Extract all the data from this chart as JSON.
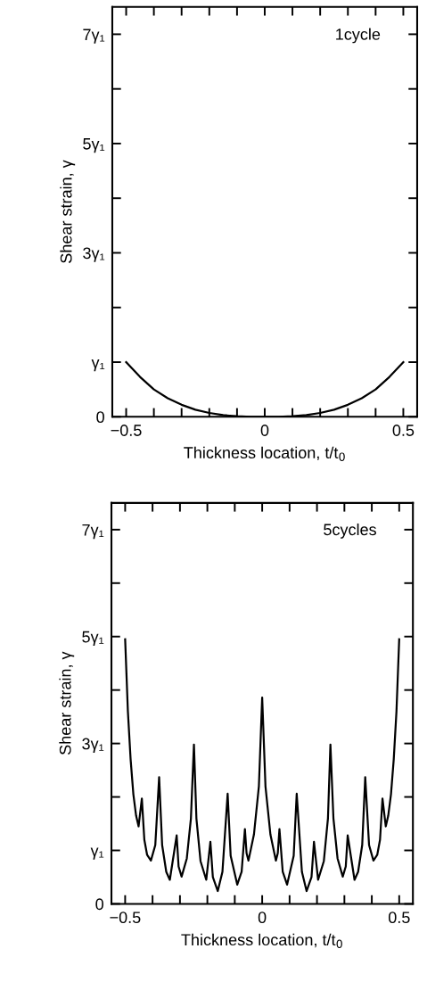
{
  "chart_data": [
    {
      "type": "line",
      "xlabel": "Thickness location, t/t$_{0}$",
      "ylabel": "Shear strain, γ",
      "annotations": [
        "1cycle"
      ],
      "x": [
        -0.5,
        -0.45,
        -0.4,
        -0.35,
        -0.3,
        -0.25,
        -0.2,
        -0.15,
        -0.1,
        -0.05,
        0,
        0.05,
        0.1,
        0.15,
        0.2,
        0.25,
        0.3,
        0.35,
        0.4,
        0.45,
        0.5
      ],
      "series": [
        {
          "color": "#000000",
          "values": [
            1,
            0.73,
            0.5,
            0.34,
            0.22,
            0.13,
            0.07,
            0.03,
            0.01,
            0,
            0,
            0,
            0.01,
            0.03,
            0.07,
            0.13,
            0.22,
            0.34,
            0.5,
            0.73,
            1
          ]
        }
      ],
      "xlim": [
        -0.55,
        0.55
      ],
      "ylim": [
        0,
        7.5
      ],
      "xticks": [
        {
          "value": -0.5,
          "label": "−0.5"
        },
        {
          "value": -0.4,
          "label": null
        },
        {
          "value": -0.3,
          "label": null
        },
        {
          "value": -0.2,
          "label": null
        },
        {
          "value": -0.1,
          "label": null
        },
        0,
        {
          "value": 0.1,
          "label": null
        },
        {
          "value": 0.2,
          "label": null
        },
        {
          "value": 0.3,
          "label": null
        },
        {
          "value": 0.4,
          "label": null
        },
        0.5
      ],
      "yticks": [
        0,
        {
          "value": 1,
          "label": "γ₁"
        },
        {
          "value": 2,
          "label": null
        },
        {
          "value": 3,
          "label": "3γ₁"
        },
        {
          "value": 4,
          "label": null
        },
        {
          "value": 5,
          "label": "5γ₁"
        },
        {
          "value": 6,
          "label": null
        },
        {
          "value": 7,
          "label": "7γ₁"
        }
      ],
      "grid": false
    },
    {
      "type": "line",
      "xlabel": "Thickness location, t/t$_{0}$",
      "ylabel": "Shear strain, γ",
      "annotations": [
        "5cycles"
      ],
      "x": [
        -0.5,
        -0.49,
        -0.48,
        -0.47,
        -0.46,
        -0.451,
        -0.439,
        -0.43,
        -0.42,
        -0.406,
        -0.39,
        -0.376,
        -0.365,
        -0.35,
        -0.337,
        -0.312,
        -0.305,
        -0.294,
        -0.275,
        -0.26,
        -0.249,
        -0.24,
        -0.225,
        -0.204,
        -0.189,
        -0.18,
        -0.162,
        -0.145,
        -0.126,
        -0.115,
        -0.091,
        -0.075,
        -0.063,
        -0.057,
        -0.05,
        -0.03,
        -0.012,
        0,
        0.012,
        0.03,
        0.05,
        0.057,
        0.063,
        0.075,
        0.091,
        0.115,
        0.126,
        0.145,
        0.162,
        0.18,
        0.189,
        0.204,
        0.225,
        0.24,
        0.249,
        0.26,
        0.275,
        0.294,
        0.305,
        0.312,
        0.337,
        0.35,
        0.365,
        0.376,
        0.39,
        0.406,
        0.42,
        0.43,
        0.439,
        0.451,
        0.46,
        0.47,
        0.48,
        0.49,
        0.5
      ],
      "series": [
        {
          "color": "#000000",
          "values": [
            4.95,
            3.6,
            2.7,
            2.05,
            1.65,
            1.45,
            1.97,
            1.2,
            0.92,
            0.81,
            1.1,
            2.37,
            1.1,
            0.6,
            0.45,
            1.28,
            0.7,
            0.51,
            0.85,
            1.6,
            2.98,
            1.6,
            0.8,
            0.45,
            1.16,
            0.5,
            0.24,
            0.6,
            2.06,
            0.9,
            0.36,
            0.6,
            1.4,
            0.95,
            0.81,
            1.3,
            2.2,
            3.86,
            2.2,
            1.3,
            0.81,
            0.95,
            1.4,
            0.6,
            0.36,
            0.9,
            2.06,
            0.6,
            0.24,
            0.5,
            1.16,
            0.45,
            0.8,
            1.6,
            2.98,
            1.6,
            0.85,
            0.51,
            0.7,
            1.28,
            0.45,
            0.6,
            1.1,
            2.37,
            1.1,
            0.81,
            0.92,
            1.2,
            1.97,
            1.45,
            1.65,
            2.05,
            2.7,
            3.6,
            4.95
          ]
        }
      ],
      "xlim": [
        -0.55,
        0.55
      ],
      "ylim": [
        0,
        7.5
      ],
      "xticks": [
        {
          "value": -0.5,
          "label": "−0.5"
        },
        {
          "value": -0.4,
          "label": null
        },
        {
          "value": -0.3,
          "label": null
        },
        {
          "value": -0.2,
          "label": null
        },
        {
          "value": -0.1,
          "label": null
        },
        0,
        {
          "value": 0.1,
          "label": null
        },
        {
          "value": 0.2,
          "label": null
        },
        {
          "value": 0.3,
          "label": null
        },
        {
          "value": 0.4,
          "label": null
        },
        0.5
      ],
      "yticks": [
        0,
        {
          "value": 1,
          "label": "γ₁"
        },
        {
          "value": 2,
          "label": null
        },
        {
          "value": 3,
          "label": "3γ₁"
        },
        {
          "value": 4,
          "label": null
        },
        {
          "value": 5,
          "label": "5γ₁"
        },
        {
          "value": 6,
          "label": null
        },
        {
          "value": 7,
          "label": "7γ₁"
        }
      ],
      "grid": false
    }
  ]
}
